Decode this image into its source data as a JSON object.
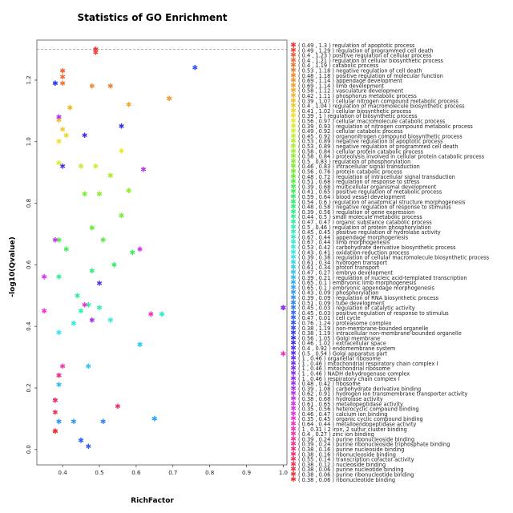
{
  "chart_data": {
    "type": "scatter",
    "title": "Statistics of GO Enrichment",
    "xlabel": "RichFactor",
    "ylabel": "-log10(Qvalue)",
    "xlim": [
      0.33,
      1.01
    ],
    "ylim": [
      -0.05,
      1.33
    ],
    "xticks": [
      "0.4",
      "0.5",
      "0.6",
      "0.7",
      "0.8",
      "0.9",
      "1.0"
    ],
    "xtick_values": [
      0.4,
      0.5,
      0.6,
      0.7,
      0.8,
      0.9,
      1.0
    ],
    "yticks": [
      "0.0",
      "0.2",
      "0.4",
      "0.6",
      "0.8",
      "1.0",
      "1.2"
    ],
    "ytick_values": [
      0.0,
      0.2,
      0.4,
      0.6,
      0.8,
      1.0,
      1.2
    ],
    "reference_line": 1.3,
    "legend_placement": "right",
    "marker_symbol": "✱",
    "series": [
      {
        "label": "( 0.49 , 1.3 ) regulation of apoptotic process",
        "x": 0.49,
        "y": 1.3,
        "color": "#f0303a"
      },
      {
        "label": "( 0.49 , 1.29 ) regulation of programmed cell death",
        "x": 0.49,
        "y": 1.29,
        "color": "#f0403a"
      },
      {
        "label": "( 0.4 , 1.23 ) positive regulation of cellular process",
        "x": 0.4,
        "y": 1.23,
        "color": "#f05a30"
      },
      {
        "label": "( 0.4 , 1.21 ) regulation of cellular biosynthetic process",
        "x": 0.4,
        "y": 1.21,
        "color": "#f06a30"
      },
      {
        "label": "( 0.4 , 1.19 ) catabolic process",
        "x": 0.4,
        "y": 1.19,
        "color": "#f07530"
      },
      {
        "label": "( 0.53 , 1.18 ) negative regulation of cell death",
        "x": 0.53,
        "y": 1.18,
        "color": "#f08030"
      },
      {
        "label": "( 0.48 , 1.18 ) positive regulation of molecular function",
        "x": 0.48,
        "y": 1.18,
        "color": "#f08a30"
      },
      {
        "label": "( 0.69 , 1.14 ) appendage development",
        "x": 0.69,
        "y": 1.14,
        "color": "#f09530"
      },
      {
        "label": "( 0.69 , 1.14 ) limb development",
        "x": 0.69,
        "y": 1.14,
        "color": "#f0a030"
      },
      {
        "label": "( 0.58 , 1.12 ) vasculature development",
        "x": 0.58,
        "y": 1.12,
        "color": "#f0aa30"
      },
      {
        "label": "( 0.42 , 1.11 ) phosphorus metabolic process",
        "x": 0.42,
        "y": 1.11,
        "color": "#f0b530"
      },
      {
        "label": "( 0.39 , 1.07 ) cellular nitrogen compound metabolic process",
        "x": 0.39,
        "y": 1.07,
        "color": "#f0c030"
      },
      {
        "label": "( 0.4 , 1.04 ) regulation of macromolecule biosynthetic process",
        "x": 0.4,
        "y": 1.04,
        "color": "#f0ca30"
      },
      {
        "label": "( 0.41 , 1.02 ) cellular biosynthetic process",
        "x": 0.41,
        "y": 1.02,
        "color": "#f0d530"
      },
      {
        "label": "( 0.39 , 1 ) regulation of biosynthetic process",
        "x": 0.39,
        "y": 1.0,
        "color": "#f0e030"
      },
      {
        "label": "( 0.56 , 0.97 ) cellular macromolecule catabolic process",
        "x": 0.56,
        "y": 0.97,
        "color": "#e8e830"
      },
      {
        "label": "( 0.39 , 0.93 ) regulation of nitrogen compound metabolic process",
        "x": 0.39,
        "y": 0.93,
        "color": "#dcec30"
      },
      {
        "label": "( 0.49 , 0.92 ) cellular catabolic process",
        "x": 0.49,
        "y": 0.92,
        "color": "#d0ee30"
      },
      {
        "label": "( 0.45 , 0.92 ) organonitrogen compound biosynthetic process",
        "x": 0.45,
        "y": 0.92,
        "color": "#c4ee30"
      },
      {
        "label": "( 0.53 , 0.89 ) negative regulation of apoptotic process",
        "x": 0.53,
        "y": 0.89,
        "color": "#b8ee30"
      },
      {
        "label": "( 0.53 , 0.89 ) negative regulation of programmed cell death",
        "x": 0.53,
        "y": 0.89,
        "color": "#acee30"
      },
      {
        "label": "( 0.58 , 0.84 ) cellular protein catabolic process",
        "x": 0.58,
        "y": 0.84,
        "color": "#a0ee30"
      },
      {
        "label": "( 0.58 , 0.84 ) proteolysis involved in cellular protein catabolic process",
        "x": 0.58,
        "y": 0.84,
        "color": "#94ee30"
      },
      {
        "label": "( 0.5 , 0.83 ) regulation of phosphorylation",
        "x": 0.5,
        "y": 0.83,
        "color": "#88ee30"
      },
      {
        "label": "( 0.46 , 0.83 ) intracellular signal transduction",
        "x": 0.46,
        "y": 0.83,
        "color": "#7cee30"
      },
      {
        "label": "( 0.56 , 0.76 ) protein catabolic process",
        "x": 0.56,
        "y": 0.76,
        "color": "#70ee30"
      },
      {
        "label": "( 0.48 , 0.72 ) regulation of intracellular signal transduction",
        "x": 0.48,
        "y": 0.72,
        "color": "#64ee34"
      },
      {
        "label": "( 0.51 , 0.68 ) regulation of response to stress",
        "x": 0.51,
        "y": 0.68,
        "color": "#58ee40"
      },
      {
        "label": "( 0.39 , 0.68 ) multicellular organismal development",
        "x": 0.39,
        "y": 0.68,
        "color": "#4cee4c"
      },
      {
        "label": "( 0.41 , 0.65 ) positive regulation of metabolic process",
        "x": 0.41,
        "y": 0.65,
        "color": "#40ee58"
      },
      {
        "label": "( 0.59 , 0.64 ) blood vessel development",
        "x": 0.59,
        "y": 0.64,
        "color": "#34ee64"
      },
      {
        "label": "( 0.54 , 0.6 ) regulation of anatomical structure morphogenesis",
        "x": 0.54,
        "y": 0.6,
        "color": "#30ee70"
      },
      {
        "label": "( 0.48 , 0.58 ) negative regulation of response to stimulus",
        "x": 0.48,
        "y": 0.58,
        "color": "#30ee7c"
      },
      {
        "label": "( 0.39 , 0.56 ) regulation of gene expression",
        "x": 0.39,
        "y": 0.56,
        "color": "#30ee88"
      },
      {
        "label": "( 0.44 , 0.5 ) small molecule metabolic process",
        "x": 0.44,
        "y": 0.5,
        "color": "#30ee94"
      },
      {
        "label": "( 0.47 , 0.47 ) organic substance catabolic process",
        "x": 0.47,
        "y": 0.47,
        "color": "#30eea0"
      },
      {
        "label": "( 0.5 , 0.46 ) regulation of protein phosphorylation",
        "x": 0.5,
        "y": 0.46,
        "color": "#30eeac"
      },
      {
        "label": "( 0.45 , 0.45 ) positive regulation of hydrolase activity",
        "x": 0.45,
        "y": 0.45,
        "color": "#30eeb8"
      },
      {
        "label": "( 0.67 , 0.44 ) appendage morphogenesis",
        "x": 0.67,
        "y": 0.44,
        "color": "#30eec4"
      },
      {
        "label": "( 0.67 , 0.44 ) limb morphogenesis",
        "x": 0.67,
        "y": 0.44,
        "color": "#30eed0"
      },
      {
        "label": "( 0.53 , 0.42 ) carbohydrate derivative biosynthetic process",
        "x": 0.53,
        "y": 0.42,
        "color": "#30eedc"
      },
      {
        "label": "( 0.43 , 0.41 ) oxidation-reduction process",
        "x": 0.43,
        "y": 0.41,
        "color": "#30eae6"
      },
      {
        "label": "( 0.39 , 0.38 ) regulation of cellular macromolecule biosynthetic process",
        "x": 0.39,
        "y": 0.38,
        "color": "#30e2ee"
      },
      {
        "label": "( 0.61 , 0.34 ) hydrogen transport",
        "x": 0.61,
        "y": 0.34,
        "color": "#30d8ee"
      },
      {
        "label": "( 0.61 , 0.34 ) proton transport",
        "x": 0.61,
        "y": 0.34,
        "color": "#30ceee"
      },
      {
        "label": "( 0.47 , 0.27 ) embryo development",
        "x": 0.47,
        "y": 0.27,
        "color": "#30c4ee"
      },
      {
        "label": "( 0.39 , 0.21 ) regulation of nucleic acid-templated transcription",
        "x": 0.39,
        "y": 0.21,
        "color": "#30baee"
      },
      {
        "label": "( 0.65 , 0.1 ) embryonic limb morphogenesis",
        "x": 0.65,
        "y": 0.1,
        "color": "#30b0ee"
      },
      {
        "label": "( 0.65 , 0.1 ) embryonic appendage morphogenesis",
        "x": 0.65,
        "y": 0.1,
        "color": "#30a6ee"
      },
      {
        "label": "( 0.43 , 0.09 ) phosphorylation",
        "x": 0.43,
        "y": 0.09,
        "color": "#309cee"
      },
      {
        "label": "( 0.39 , 0.09 ) regulation of RNA biosynthetic process",
        "x": 0.39,
        "y": 0.09,
        "color": "#3090ee"
      },
      {
        "label": "( 0.51 , 0.09 ) tube development",
        "x": 0.51,
        "y": 0.09,
        "color": "#3084ee"
      },
      {
        "label": "( 0.45 , 0.03 ) regulation of catalytic activity",
        "x": 0.45,
        "y": 0.03,
        "color": "#3078ee"
      },
      {
        "label": "( 0.45 , 0.03 ) positive regulation of response to stimulus",
        "x": 0.45,
        "y": 0.03,
        "color": "#306cee"
      },
      {
        "label": "( 0.47 , 0.01 ) cell cycle",
        "x": 0.47,
        "y": 0.01,
        "color": "#3060ee"
      },
      {
        "label": "( 0.76 , 1.24 ) proteasome complex",
        "x": 0.76,
        "y": 1.24,
        "color": "#3054ee"
      },
      {
        "label": "( 0.38 , 1.19 ) non-membrane-bounded organelle",
        "x": 0.38,
        "y": 1.19,
        "color": "#3048ee"
      },
      {
        "label": "( 0.38 , 1.19 ) intracellular non-membrane-bounded organelle",
        "x": 0.38,
        "y": 1.19,
        "color": "#303cee"
      },
      {
        "label": "( 0.56 , 1.05 ) Golgi membrane",
        "x": 0.56,
        "y": 1.05,
        "color": "#3430ee"
      },
      {
        "label": "( 0.46 , 1.02 ) extracellular space",
        "x": 0.46,
        "y": 1.02,
        "color": "#4030ee"
      },
      {
        "label": "( 0.4 , 0.92 ) endomembrane system",
        "x": 0.4,
        "y": 0.92,
        "color": "#4c30ee"
      },
      {
        "label": "( 0.5 , 0.54 ) Golgi apparatus part",
        "x": 0.5,
        "y": 0.54,
        "color": "#5830ee"
      },
      {
        "label": "( 1 , 0.46 ) organellar ribosome",
        "x": 1.0,
        "y": 0.46,
        "color": "#6430ee"
      },
      {
        "label": "( 1 , 0.46 ) mitochondrial respiratory chain complex I",
        "x": 1.0,
        "y": 0.46,
        "color": "#7030ee"
      },
      {
        "label": "( 1 , 0.46 ) mitochondrial ribosome",
        "x": 1.0,
        "y": 0.46,
        "color": "#7c30ee"
      },
      {
        "label": "( 1 , 0.46 ) NADH dehydrogenase complex",
        "x": 1.0,
        "y": 0.46,
        "color": "#8830ee"
      },
      {
        "label": "( 1 , 0.46 ) respiratory chain complex I",
        "x": 1.0,
        "y": 0.46,
        "color": "#9430ee"
      },
      {
        "label": "( 0.48 , 0.42 ) ribosome",
        "x": 0.48,
        "y": 0.42,
        "color": "#a030ee"
      },
      {
        "label": "( 0.39 , 1.08 ) carbohydrate derivative binding",
        "x": 0.39,
        "y": 1.08,
        "color": "#ac30ee"
      },
      {
        "label": "( 0.62 , 0.91 ) hydrogen ion transmembrane transporter activity",
        "x": 0.62,
        "y": 0.91,
        "color": "#b830ee"
      },
      {
        "label": "( 0.38 , 0.68 ) hydrolase activity",
        "x": 0.38,
        "y": 0.68,
        "color": "#c430ee"
      },
      {
        "label": "( 0.61 , 0.65 ) metallopeptidase activity",
        "x": 0.61,
        "y": 0.65,
        "color": "#d030ee"
      },
      {
        "label": "( 0.35 , 0.56 ) heterocyclic compound binding",
        "x": 0.35,
        "y": 0.56,
        "color": "#dc30ea"
      },
      {
        "label": "( 0.46 , 0.47 ) calcium ion binding",
        "x": 0.46,
        "y": 0.47,
        "color": "#e630e0"
      },
      {
        "label": "( 0.35 , 0.45 ) organic cyclic compound binding",
        "x": 0.35,
        "y": 0.45,
        "color": "#ee30d4"
      },
      {
        "label": "( 0.64 , 0.44 ) metalloendopeptidase activity",
        "x": 0.64,
        "y": 0.44,
        "color": "#ee30c6"
      },
      {
        "label": "( 1 , 0.31 ) 2 iron, 2 sulfur cluster binding",
        "x": 1.0,
        "y": 0.31,
        "color": "#ee30b8"
      },
      {
        "label": "( 0.4 , 0.27 ) zinc ion binding",
        "x": 0.4,
        "y": 0.27,
        "color": "#ee30aa"
      },
      {
        "label": "( 0.39 , 0.24 ) purine ribonucleoside binding",
        "x": 0.39,
        "y": 0.24,
        "color": "#ee309c"
      },
      {
        "label": "( 0.39 , 0.24 ) purine ribonucleoside triphosphate binding",
        "x": 0.39,
        "y": 0.24,
        "color": "#ee308e"
      },
      {
        "label": "( 0.38 , 0.16 ) purine nucleoside binding",
        "x": 0.38,
        "y": 0.16,
        "color": "#ee3080"
      },
      {
        "label": "( 0.38 , 0.16 ) ribonucleoside binding",
        "x": 0.38,
        "y": 0.16,
        "color": "#ee3072"
      },
      {
        "label": "( 0.55 , 0.14 ) transcription cofactor activity",
        "x": 0.55,
        "y": 0.14,
        "color": "#ee3064"
      },
      {
        "label": "( 0.38 , 0.12 ) nucleoside binding",
        "x": 0.38,
        "y": 0.12,
        "color": "#ee3056"
      },
      {
        "label": "( 0.38 , 0.06 ) purine nucleotide binding",
        "x": 0.38,
        "y": 0.06,
        "color": "#ee3048"
      },
      {
        "label": "( 0.38 , 0.06 ) purine ribonucleotide binding",
        "x": 0.38,
        "y": 0.06,
        "color": "#ee303c"
      },
      {
        "label": "( 0.38 , 0.06 ) ribonucleotide binding",
        "x": 0.38,
        "y": 0.06,
        "color": "#ee3030"
      }
    ]
  }
}
